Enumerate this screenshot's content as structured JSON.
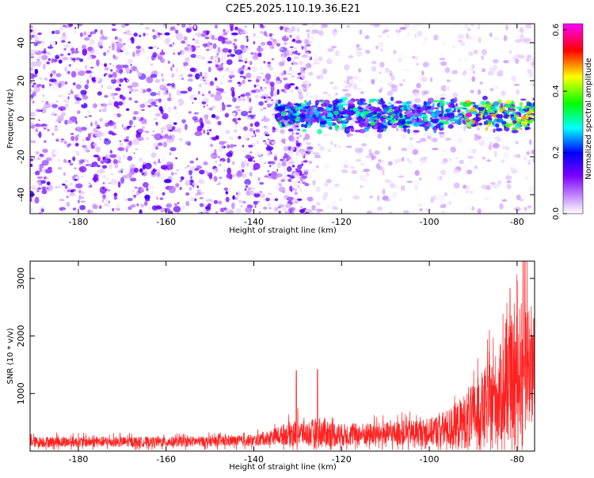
{
  "title": "C2E5.2025.110.19.36.E21",
  "chart_data": [
    {
      "type": "heatmap",
      "xlabel": "Height of straight line (km)",
      "ylabel": "Frequency (Hz)",
      "xlim": [
        -191,
        -76
      ],
      "ylim": [
        -50,
        50
      ],
      "xticks": [
        -180,
        -160,
        -140,
        -120,
        -100,
        -80
      ],
      "yticks": [
        -40,
        -20,
        0,
        20,
        40
      ],
      "colorbar": {
        "label": "Normalized spectral amplitude",
        "range": [
          0.0,
          0.62
        ],
        "ticks": [
          0.0,
          0.2,
          0.4,
          0.6
        ],
        "colors": [
          "#ffffff",
          "#cc99ff",
          "#7b00ff",
          "#0000ff",
          "#00ffff",
          "#00ff00",
          "#ffff00",
          "#ff0000",
          "#ff00ff"
        ]
      },
      "features": [
        {
          "label": "diffuse noise",
          "x_range": [
            -191,
            -133
          ],
          "f_range": [
            -50,
            50
          ],
          "level": 0.12
        },
        {
          "label": "signal band",
          "x_range": [
            -135,
            -76
          ],
          "f_center": 2,
          "f_halfwidth": 8,
          "level": 0.3
        },
        {
          "label": "peak",
          "x": -91,
          "f": 2,
          "level": 0.62
        }
      ]
    },
    {
      "type": "line",
      "xlabel": "Height of straight line (km)",
      "ylabel": "SNR (10 * v/v)",
      "xlim": [
        -191,
        -76
      ],
      "ylim": [
        0,
        3300
      ],
      "xticks": [
        -180,
        -160,
        -140,
        -120,
        -100,
        -80
      ],
      "yticks": [
        1000,
        2000,
        3000
      ],
      "series": [
        {
          "color": "#ff2020",
          "envelope": {
            "x": [
              -191,
              -160,
              -140,
              -135,
              -130,
              -128,
              -125,
              -120,
              -110,
              -100,
              -95,
              -90,
              -85,
              -80,
              -78,
              -76
            ],
            "base": [
              160,
              160,
              180,
              260,
              330,
              300,
              330,
              280,
              300,
              330,
              400,
              600,
              900,
              1300,
              1600,
              1400
            ],
            "amp": [
              120,
              110,
              120,
              180,
              300,
              260,
              350,
              250,
              250,
              300,
              450,
              700,
              1000,
              1400,
              1600,
              1200
            ]
          },
          "spikes": [
            {
              "x": -130.3,
              "y": 1400
            },
            {
              "x": -125.5,
              "y": 1420
            },
            {
              "x": -78.2,
              "y": 3300
            }
          ]
        }
      ]
    }
  ]
}
